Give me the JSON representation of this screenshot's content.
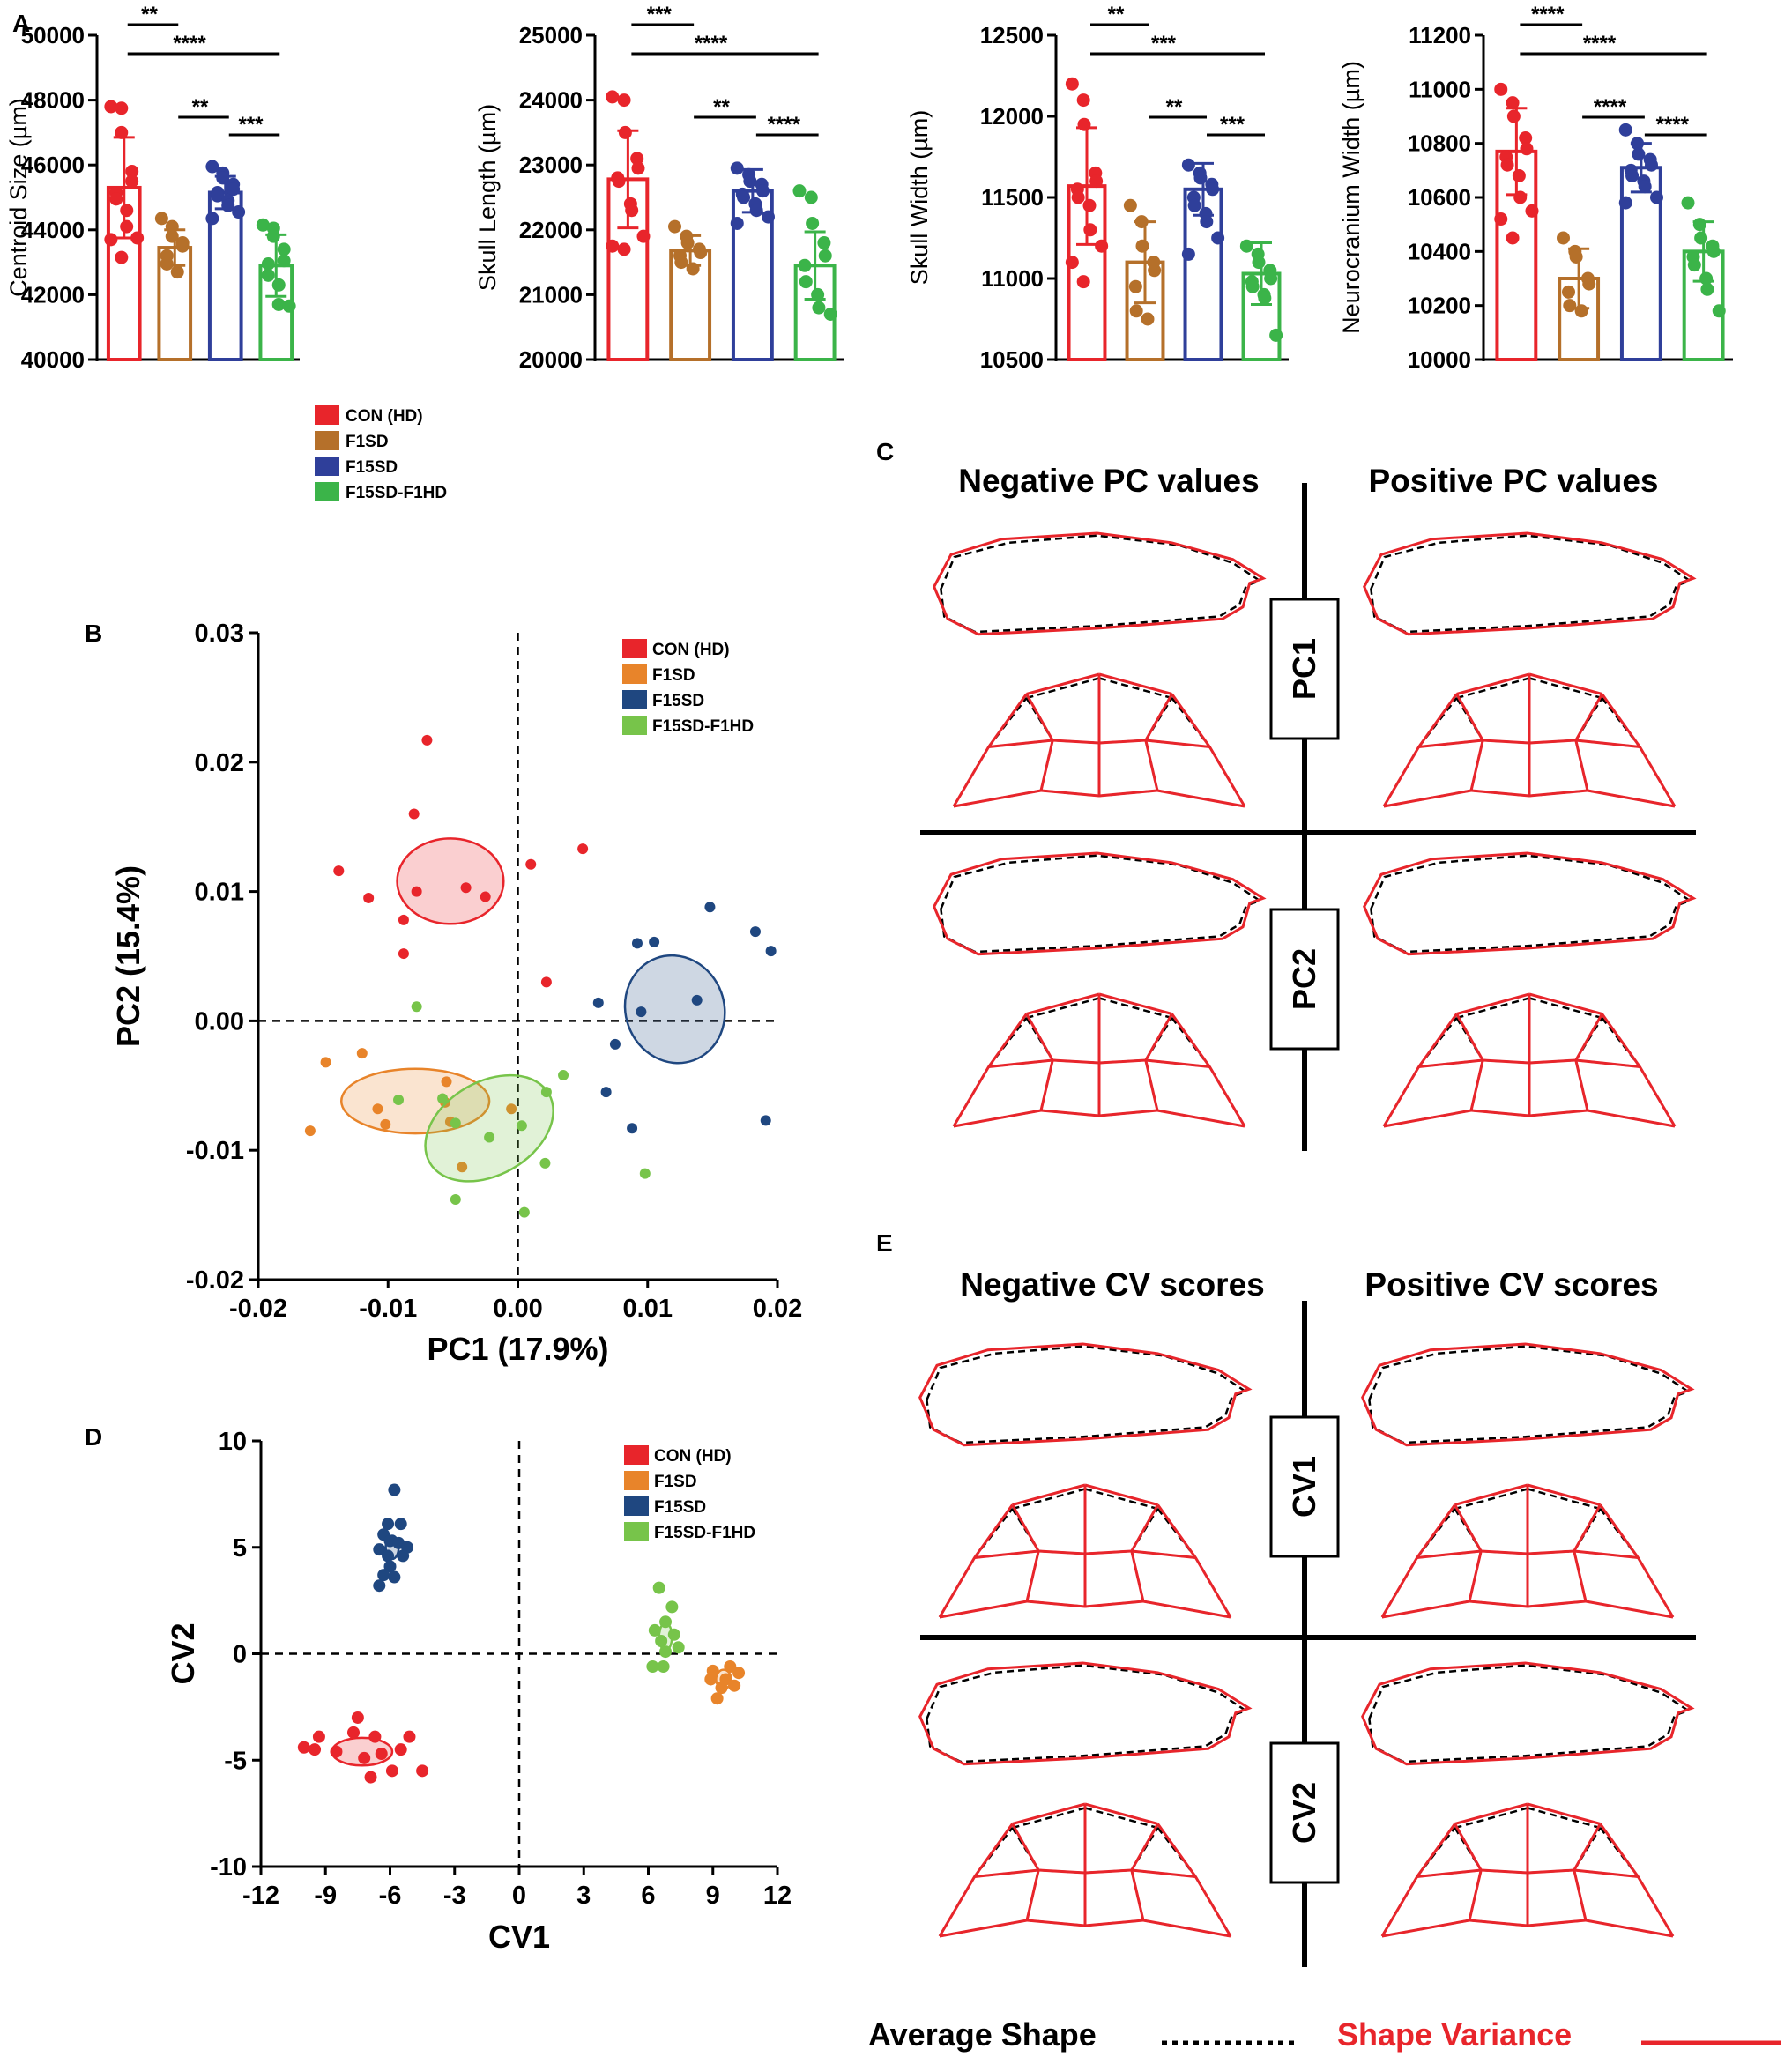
{
  "colors": {
    "CON (HD)": "#e8252b",
    "F1SD": "#b5702a",
    "F15SD": "#2f3f9a",
    "F15SD-F1HD": "#3bb449",
    "F1SD_scatter": "#e8842a",
    "F15SD_scatter": "#1f4780",
    "F15SD-F1HD_scatter": "#77c44a",
    "shape_red": "#e8252b",
    "shape_black": "#000000"
  },
  "groups": [
    "CON (HD)",
    "F1SD",
    "F15SD",
    "F15SD-F1HD"
  ],
  "panel_letters": {
    "a": "A",
    "b": "B",
    "c": "C",
    "d": "D",
    "e": "E"
  },
  "chart_data": [
    {
      "id": "A1",
      "type": "bar",
      "ylabel": "Centroid Size (µm)",
      "ylim": [
        40000,
        50000
      ],
      "yticks": [
        "40000",
        "42000",
        "44000",
        "46000",
        "48000",
        "50000"
      ],
      "ytick_values": [
        40000,
        42000,
        44000,
        46000,
        48000,
        50000
      ],
      "categories": [
        "CON (HD)",
        "F1SD",
        "F15SD",
        "F15SD-F1HD"
      ],
      "values": [
        45300,
        43450,
        45150,
        42900
      ],
      "sd": [
        1550,
        550,
        500,
        950
      ],
      "points": [
        [
          47800,
          47750,
          47000,
          45800,
          45500,
          45150,
          44950,
          44600,
          44100,
          43750,
          43700,
          43150
        ],
        [
          44350,
          44100,
          43800,
          43600,
          43500,
          43200,
          42950,
          42700
        ],
        [
          45950,
          45750,
          45600,
          45400,
          45250,
          45150,
          45050,
          44900,
          44750,
          44550,
          44350
        ],
        [
          44150,
          44050,
          43800,
          43400,
          43050,
          42950,
          42600,
          42300,
          41700,
          41650
        ]
      ],
      "brackets": [
        {
          "from": 0,
          "to": 1,
          "label": "**"
        },
        {
          "from": 0,
          "to": 3,
          "label": "****"
        },
        {
          "from": 1,
          "to": 2,
          "label": "**"
        },
        {
          "from": 2,
          "to": 3,
          "label": "***"
        }
      ]
    },
    {
      "id": "A2",
      "type": "bar",
      "ylabel": "Skull Length (µm)",
      "ylim": [
        20000,
        25000
      ],
      "yticks": [
        "20000",
        "21000",
        "22000",
        "23000",
        "24000",
        "25000"
      ],
      "ytick_values": [
        20000,
        21000,
        22000,
        23000,
        24000,
        25000
      ],
      "categories": [
        "CON (HD)",
        "F1SD",
        "F15SD",
        "F15SD-F1HD"
      ],
      "values": [
        22780,
        21680,
        22600,
        21450
      ],
      "sd": [
        750,
        230,
        330,
        520
      ],
      "points": [
        [
          24050,
          24000,
          23500,
          23100,
          22950,
          22800,
          22750,
          22400,
          22300,
          21900,
          21750,
          21700
        ],
        [
          22050,
          21900,
          21800,
          21700,
          21650,
          21600,
          21500,
          21400
        ],
        [
          22950,
          22850,
          22750,
          22700,
          22600,
          22550,
          22500,
          22400,
          22300,
          22200,
          22100
        ],
        [
          22600,
          22500,
          22100,
          21800,
          21600,
          21450,
          21200,
          21000,
          20800,
          20700
        ]
      ],
      "brackets": [
        {
          "from": 0,
          "to": 1,
          "label": "***"
        },
        {
          "from": 0,
          "to": 3,
          "label": "****"
        },
        {
          "from": 1,
          "to": 2,
          "label": "**"
        },
        {
          "from": 2,
          "to": 3,
          "label": "****"
        }
      ]
    },
    {
      "id": "A3",
      "type": "bar",
      "ylabel": "Skull Width (µm)",
      "ylim": [
        10500,
        12500
      ],
      "yticks": [
        "10500",
        "11000",
        "11500",
        "12000",
        "12500"
      ],
      "ytick_values": [
        10500,
        11000,
        11500,
        12000,
        12500
      ],
      "categories": [
        "CON (HD)",
        "F1SD",
        "F15SD",
        "F15SD-F1HD"
      ],
      "values": [
        11570,
        11100,
        11550,
        11030
      ],
      "sd": [
        360,
        250,
        160,
        190
      ],
      "points": [
        [
          12200,
          12100,
          11950,
          11650,
          11600,
          11550,
          11500,
          11450,
          11300,
          11200,
          11100,
          10980
        ],
        [
          11450,
          11350,
          11200,
          11100,
          11050,
          10950,
          10800,
          10750
        ],
        [
          11700,
          11650,
          11620,
          11580,
          11550,
          11500,
          11450,
          11400,
          11350,
          11250,
          11150
        ],
        [
          11200,
          11150,
          11100,
          11050,
          11000,
          10980,
          10950,
          10900,
          10880,
          10650
        ]
      ],
      "brackets": [
        {
          "from": 0,
          "to": 1,
          "label": "**"
        },
        {
          "from": 0,
          "to": 3,
          "label": "***"
        },
        {
          "from": 1,
          "to": 2,
          "label": "**"
        },
        {
          "from": 2,
          "to": 3,
          "label": "***"
        }
      ]
    },
    {
      "id": "A4",
      "type": "bar",
      "ylabel": "Neurocranium Width (µm)",
      "ylim": [
        10000,
        11200
      ],
      "yticks": [
        "10000",
        "10200",
        "10400",
        "10600",
        "10800",
        "11000",
        "11200"
      ],
      "ytick_values": [
        10000,
        10200,
        10400,
        10600,
        10800,
        11000,
        11200
      ],
      "categories": [
        "CON (HD)",
        "F1SD",
        "F15SD",
        "F15SD-F1HD"
      ],
      "values": [
        10770,
        10300,
        10710,
        10400
      ],
      "sd": [
        160,
        110,
        90,
        110
      ],
      "points": [
        [
          11000,
          10950,
          10900,
          10820,
          10780,
          10750,
          10720,
          10680,
          10600,
          10550,
          10520,
          10450
        ],
        [
          10450,
          10400,
          10380,
          10300,
          10280,
          10250,
          10200,
          10180
        ],
        [
          10850,
          10800,
          10760,
          10740,
          10720,
          10700,
          10680,
          10660,
          10640,
          10600,
          10580
        ],
        [
          10580,
          10500,
          10450,
          10420,
          10400,
          10380,
          10350,
          10300,
          10260,
          10180
        ]
      ],
      "brackets": [
        {
          "from": 0,
          "to": 1,
          "label": "****"
        },
        {
          "from": 0,
          "to": 3,
          "label": "****"
        },
        {
          "from": 1,
          "to": 2,
          "label": "****"
        },
        {
          "from": 2,
          "to": 3,
          "label": "****"
        }
      ]
    },
    {
      "id": "B",
      "type": "scatter",
      "xlabel": "PC1 (17.9%)",
      "ylabel": "PC2 (15.4%)",
      "xlim": [
        -0.02,
        0.02
      ],
      "ylim": [
        -0.02,
        0.03
      ],
      "xticks": [
        "-0.02",
        "-0.01",
        "0.00",
        "0.01",
        "0.02"
      ],
      "xtick_values": [
        -0.02,
        -0.01,
        0.0,
        0.01,
        0.02
      ],
      "yticks": [
        "-0.02",
        "-0.01",
        "0.00",
        "0.01",
        "0.02",
        "0.03"
      ],
      "ytick_values": [
        -0.02,
        -0.01,
        0.0,
        0.01,
        0.02,
        0.03
      ],
      "series": [
        {
          "name": "CON (HD)",
          "points": [
            [
              -0.007,
              0.0217
            ],
            [
              -0.008,
              0.016
            ],
            [
              -0.0138,
              0.0116
            ],
            [
              -0.0115,
              0.0095
            ],
            [
              -0.0078,
              0.01
            ],
            [
              -0.004,
              0.0103
            ],
            [
              -0.0025,
              0.0096
            ],
            [
              -0.0088,
              0.0078
            ],
            [
              -0.0088,
              0.0052
            ],
            [
              0.001,
              0.0121
            ],
            [
              0.005,
              0.0133
            ],
            [
              0.0022,
              0.003
            ]
          ],
          "ellipse": {
            "cx": -0.0052,
            "cy": 0.0108,
            "rx": 0.0041,
            "ry": 0.0033,
            "angle": 0
          }
        },
        {
          "name": "F1SD",
          "points": [
            [
              -0.0148,
              -0.0032
            ],
            [
              -0.012,
              -0.0025
            ],
            [
              -0.016,
              -0.0085
            ],
            [
              -0.0108,
              -0.0068
            ],
            [
              -0.0102,
              -0.008
            ],
            [
              -0.0055,
              -0.0047
            ],
            [
              -0.0056,
              -0.0063
            ],
            [
              -0.0052,
              -0.0078
            ],
            [
              -0.0043,
              -0.0113
            ],
            [
              -0.0005,
              -0.0068
            ]
          ],
          "ellipse": {
            "cx": -0.0079,
            "cy": -0.0062,
            "rx": 0.0057,
            "ry": 0.0025,
            "angle": 0
          }
        },
        {
          "name": "F15SD",
          "points": [
            [
              0.0148,
              0.0088
            ],
            [
              0.0183,
              0.0069
            ],
            [
              0.0195,
              0.0054
            ],
            [
              0.0092,
              0.006
            ],
            [
              0.0105,
              0.0061
            ],
            [
              0.0095,
              0.0007
            ],
            [
              0.0138,
              0.0016
            ],
            [
              0.0062,
              0.0014
            ],
            [
              0.0075,
              -0.0018
            ],
            [
              0.0068,
              -0.0055
            ],
            [
              0.0088,
              -0.0083
            ],
            [
              0.0191,
              -0.0077
            ]
          ],
          "ellipse": {
            "cx": 0.0121,
            "cy": 0.0009,
            "rx": 0.0038,
            "ry": 0.0042,
            "angle": 20
          }
        },
        {
          "name": "F15SD-F1HD",
          "points": [
            [
              -0.0078,
              0.0011
            ],
            [
              -0.0092,
              -0.0061
            ],
            [
              -0.0058,
              -0.006
            ],
            [
              -0.0048,
              -0.0079
            ],
            [
              -0.0022,
              -0.009
            ],
            [
              0.0003,
              -0.0081
            ],
            [
              0.0022,
              -0.0055
            ],
            [
              0.0035,
              -0.0042
            ],
            [
              0.0021,
              -0.011
            ],
            [
              -0.0048,
              -0.0138
            ],
            [
              0.0005,
              -0.0148
            ],
            [
              0.0098,
              -0.0118
            ]
          ],
          "ellipse": {
            "cx": -0.0022,
            "cy": -0.0083,
            "rx": 0.0053,
            "ry": 0.0036,
            "angle": 30
          }
        }
      ]
    },
    {
      "id": "D",
      "type": "scatter",
      "xlabel": "CV1",
      "ylabel": "CV2",
      "xlim": [
        -12,
        12
      ],
      "ylim": [
        -10,
        10
      ],
      "xticks": [
        "-12",
        "-9",
        "-6",
        "-3",
        "0",
        "3",
        "6",
        "9",
        "12"
      ],
      "xtick_values": [
        -12,
        -9,
        -6,
        -3,
        0,
        3,
        6,
        9,
        12
      ],
      "yticks": [
        "-10",
        "-5",
        "0",
        "5",
        "10"
      ],
      "ytick_values": [
        -10,
        -5,
        0,
        5,
        10
      ],
      "series": [
        {
          "name": "CON (HD)",
          "points": [
            [
              -10,
              -4.4
            ],
            [
              -9.5,
              -4.5
            ],
            [
              -9.3,
              -3.9
            ],
            [
              -8.5,
              -4.6
            ],
            [
              -7.7,
              -3.7
            ],
            [
              -7.5,
              -3.0
            ],
            [
              -7.2,
              -4.9
            ],
            [
              -6.7,
              -3.9
            ],
            [
              -6.4,
              -4.7
            ],
            [
              -5.9,
              -5.5
            ],
            [
              -5.5,
              -4.5
            ],
            [
              -5.1,
              -3.9
            ],
            [
              -4.5,
              -5.5
            ],
            [
              -6.9,
              -5.8
            ]
          ],
          "ellipse": {
            "cx": -7.3,
            "cy": -4.6,
            "rx": 1.4,
            "ry": 0.65,
            "angle": 0
          }
        },
        {
          "name": "F1SD",
          "points": [
            [
              9.0,
              -0.8
            ],
            [
              9.6,
              -1.2
            ],
            [
              10.2,
              -0.9
            ],
            [
              9.4,
              -1.6
            ],
            [
              8.9,
              -1.2
            ],
            [
              9.8,
              -0.6
            ],
            [
              9.2,
              -2.1
            ],
            [
              10.0,
              -1.5
            ]
          ],
          "ellipse": {
            "cx": 9.5,
            "cy": -1.2,
            "rx": 0.35,
            "ry": 0.45,
            "angle": 0
          }
        },
        {
          "name": "F15SD",
          "points": [
            [
              -5.8,
              7.7
            ],
            [
              -6.1,
              6.1
            ],
            [
              -5.5,
              6.1
            ],
            [
              -6.3,
              5.6
            ],
            [
              -6.0,
              5.3
            ],
            [
              -5.6,
              5.2
            ],
            [
              -6.5,
              4.9
            ],
            [
              -6.1,
              4.6
            ],
            [
              -5.4,
              4.6
            ],
            [
              -6.0,
              4.1
            ],
            [
              -6.3,
              3.7
            ],
            [
              -5.8,
              3.6
            ],
            [
              -6.5,
              3.2
            ],
            [
              -5.2,
              5.0
            ]
          ],
          "ellipse": {
            "cx": -5.9,
            "cy": 5.0,
            "rx": 0.3,
            "ry": 0.55,
            "angle": 0
          }
        },
        {
          "name": "F15SD-F1HD",
          "points": [
            [
              6.5,
              3.1
            ],
            [
              7.1,
              2.2
            ],
            [
              6.8,
              1.5
            ],
            [
              6.3,
              1.1
            ],
            [
              7.2,
              0.9
            ],
            [
              6.6,
              0.6
            ],
            [
              7.4,
              0.3
            ],
            [
              6.8,
              0.1
            ],
            [
              6.2,
              -0.6
            ],
            [
              6.7,
              -0.6
            ]
          ],
          "ellipse": {
            "cx": 6.8,
            "cy": 0.8,
            "rx": 0.3,
            "ry": 0.65,
            "angle": 0
          }
        }
      ]
    }
  ],
  "legend_a": {
    "items": [
      "CON (HD)",
      "F1SD",
      "F15SD",
      "F15SD-F1HD"
    ]
  },
  "legend_b": {
    "items": [
      "CON (HD)",
      "F1SD",
      "F15SD",
      "F15SD-F1HD"
    ]
  },
  "legend_d": {
    "items": [
      "CON (HD)",
      "F1SD",
      "F15SD",
      "F15SD-F1HD"
    ]
  },
  "panel_c": {
    "neg_title": "Negative PC values",
    "pos_title": "Positive PC values",
    "pc1": "PC1",
    "pc2": "PC2"
  },
  "panel_e": {
    "neg_title": "Negative CV scores",
    "pos_title": "Positive CV scores",
    "cv1": "CV1",
    "cv2": "CV2"
  },
  "bottom_legend": {
    "average": "Average Shape",
    "variance": "Shape Variance"
  }
}
